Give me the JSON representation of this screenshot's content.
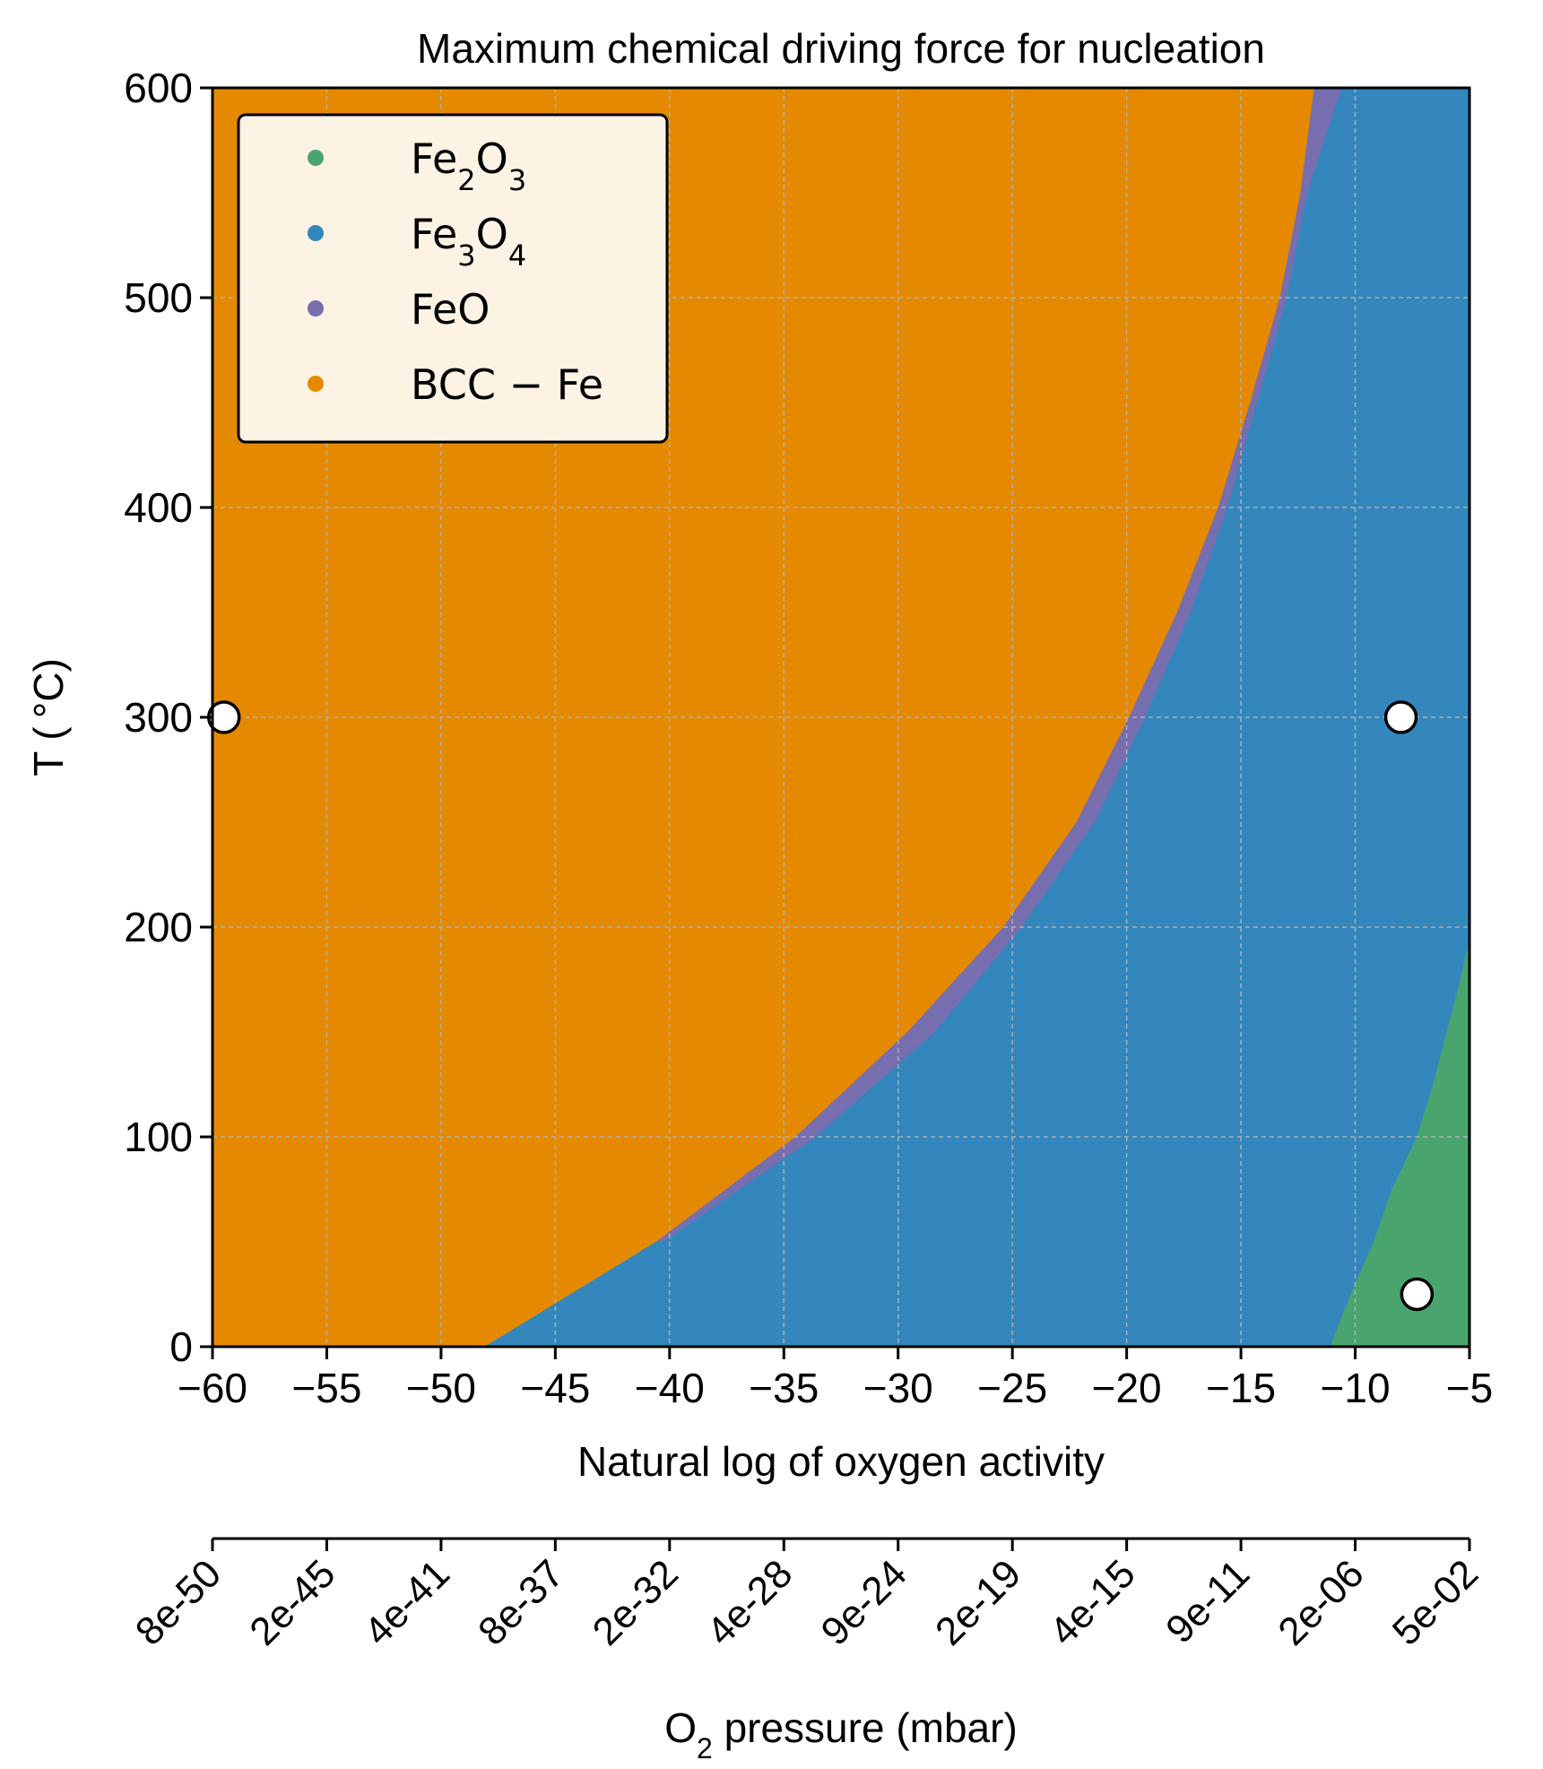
{
  "chart_data": {
    "type": "heatmap",
    "title": "Maximum chemical driving force for nucleation",
    "xlabel": "Natural log of oxygen activity",
    "ylabel": "T ( °C)",
    "xlim": [
      -60,
      -5
    ],
    "ylim": [
      0,
      600
    ],
    "x_ticks": [
      "−60",
      "−55",
      "−50",
      "−45",
      "−40",
      "−35",
      "−30",
      "−25",
      "−20",
      "−15",
      "−10",
      "−5"
    ],
    "x_tick_values": [
      -60,
      -55,
      -50,
      -45,
      -40,
      -35,
      -30,
      -25,
      -20,
      -15,
      -10,
      -5
    ],
    "y_ticks": [
      "0",
      "100",
      "200",
      "300",
      "400",
      "500",
      "600"
    ],
    "y_tick_values": [
      0,
      100,
      200,
      300,
      400,
      500,
      600
    ],
    "grid": true,
    "legend_position": "top-left",
    "phases": [
      {
        "name": "Fe",
        "sub": "2",
        "name2": "O",
        "sub2": "3",
        "color": "#4aa46e"
      },
      {
        "name": "Fe",
        "sub": "3",
        "name2": "O",
        "sub2": "4",
        "color": "#3387bd"
      },
      {
        "name": "FeO",
        "sub": "",
        "name2": "",
        "sub2": "",
        "color": "#776eb0"
      },
      {
        "name": "BCC − Fe",
        "sub": "",
        "name2": "",
        "sub2": "",
        "color": "#e58a00"
      }
    ],
    "boundaries": {
      "bcc_upper": {
        "T": [
          0,
          50,
          100,
          150,
          200,
          250,
          300,
          350,
          400,
          450,
          500,
          550,
          600
        ],
        "lnaO2": [
          -48.1,
          -40.6,
          -34.5,
          -29.6,
          -25.4,
          -22.2,
          -19.9,
          -17.8,
          -16.0,
          -14.6,
          -13.3,
          -12.4,
          -11.8
        ]
      },
      "feo_upper": {
        "T": [
          0,
          50,
          100,
          150,
          200,
          250,
          300,
          350,
          400,
          450,
          500,
          550,
          600
        ],
        "lnaO2": [
          -48.1,
          -40.6,
          -34.5,
          -29.6,
          -25.4,
          -22.2,
          -19.9,
          -17.8,
          -16.0,
          -14.6,
          -13.3,
          -12.4,
          -11.8
        ]
      },
      "feo_lower": {
        "T": [
          50,
          100,
          150,
          200,
          250,
          300,
          350,
          400,
          450,
          500,
          550,
          600
        ],
        "lnaO2": [
          -40.3,
          -33.6,
          -28.4,
          -24.6,
          -21.4,
          -19.2,
          -17.2,
          -15.6,
          -14.3,
          -13.0,
          -12.1,
          -10.6
        ]
      },
      "fe2o3_lower": {
        "T": [
          0,
          25,
          50,
          75,
          100,
          125,
          150,
          175,
          195
        ],
        "lnaO2": [
          -11.1,
          -10.2,
          -9.2,
          -8.4,
          -7.3,
          -6.6,
          -6.0,
          -5.4,
          -5.0
        ]
      }
    },
    "markers": [
      {
        "x": -59.5,
        "y": 300
      },
      {
        "x": -8.0,
        "y": 300
      },
      {
        "x": -7.3,
        "y": 25
      }
    ],
    "secondary_axis": {
      "label_main": "O",
      "label_sub": "2",
      "label_rest": " pressure (mbar)",
      "ticks": [
        "8e-50",
        "2e-45",
        "4e-41",
        "8e-37",
        "2e-32",
        "4e-28",
        "9e-24",
        "2e-19",
        "4e-15",
        "9e-11",
        "2e-06",
        "5e-02"
      ],
      "tick_values": [
        -60,
        -55,
        -50,
        -45,
        -40,
        -35,
        -30,
        -25,
        -20,
        -15,
        -10,
        -5
      ]
    }
  }
}
